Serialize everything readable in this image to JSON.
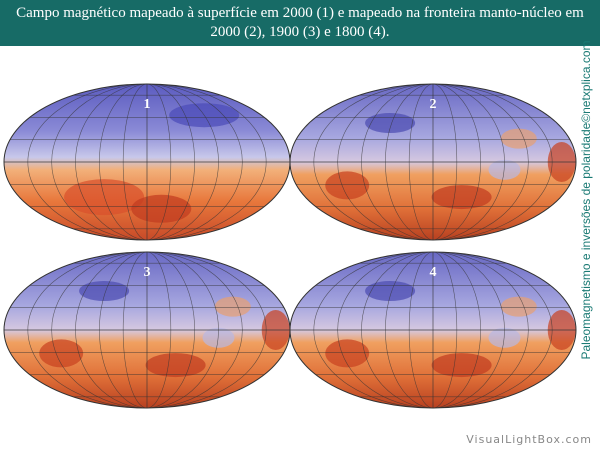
{
  "header": {
    "title": "Campo magnético mapeado à superfície em 2000 (1) e mapeado na fronteira manto-núcleo em 2000 (2), 1900 (3) e 1800 (4)."
  },
  "maps": [
    {
      "label": "1"
    },
    {
      "label": "2"
    },
    {
      "label": "3"
    },
    {
      "label": "4"
    }
  ],
  "side_text": "Paleomagnetismo e inversões de polaridade©netxplica.com",
  "footer": "VisualLightBox.com"
}
